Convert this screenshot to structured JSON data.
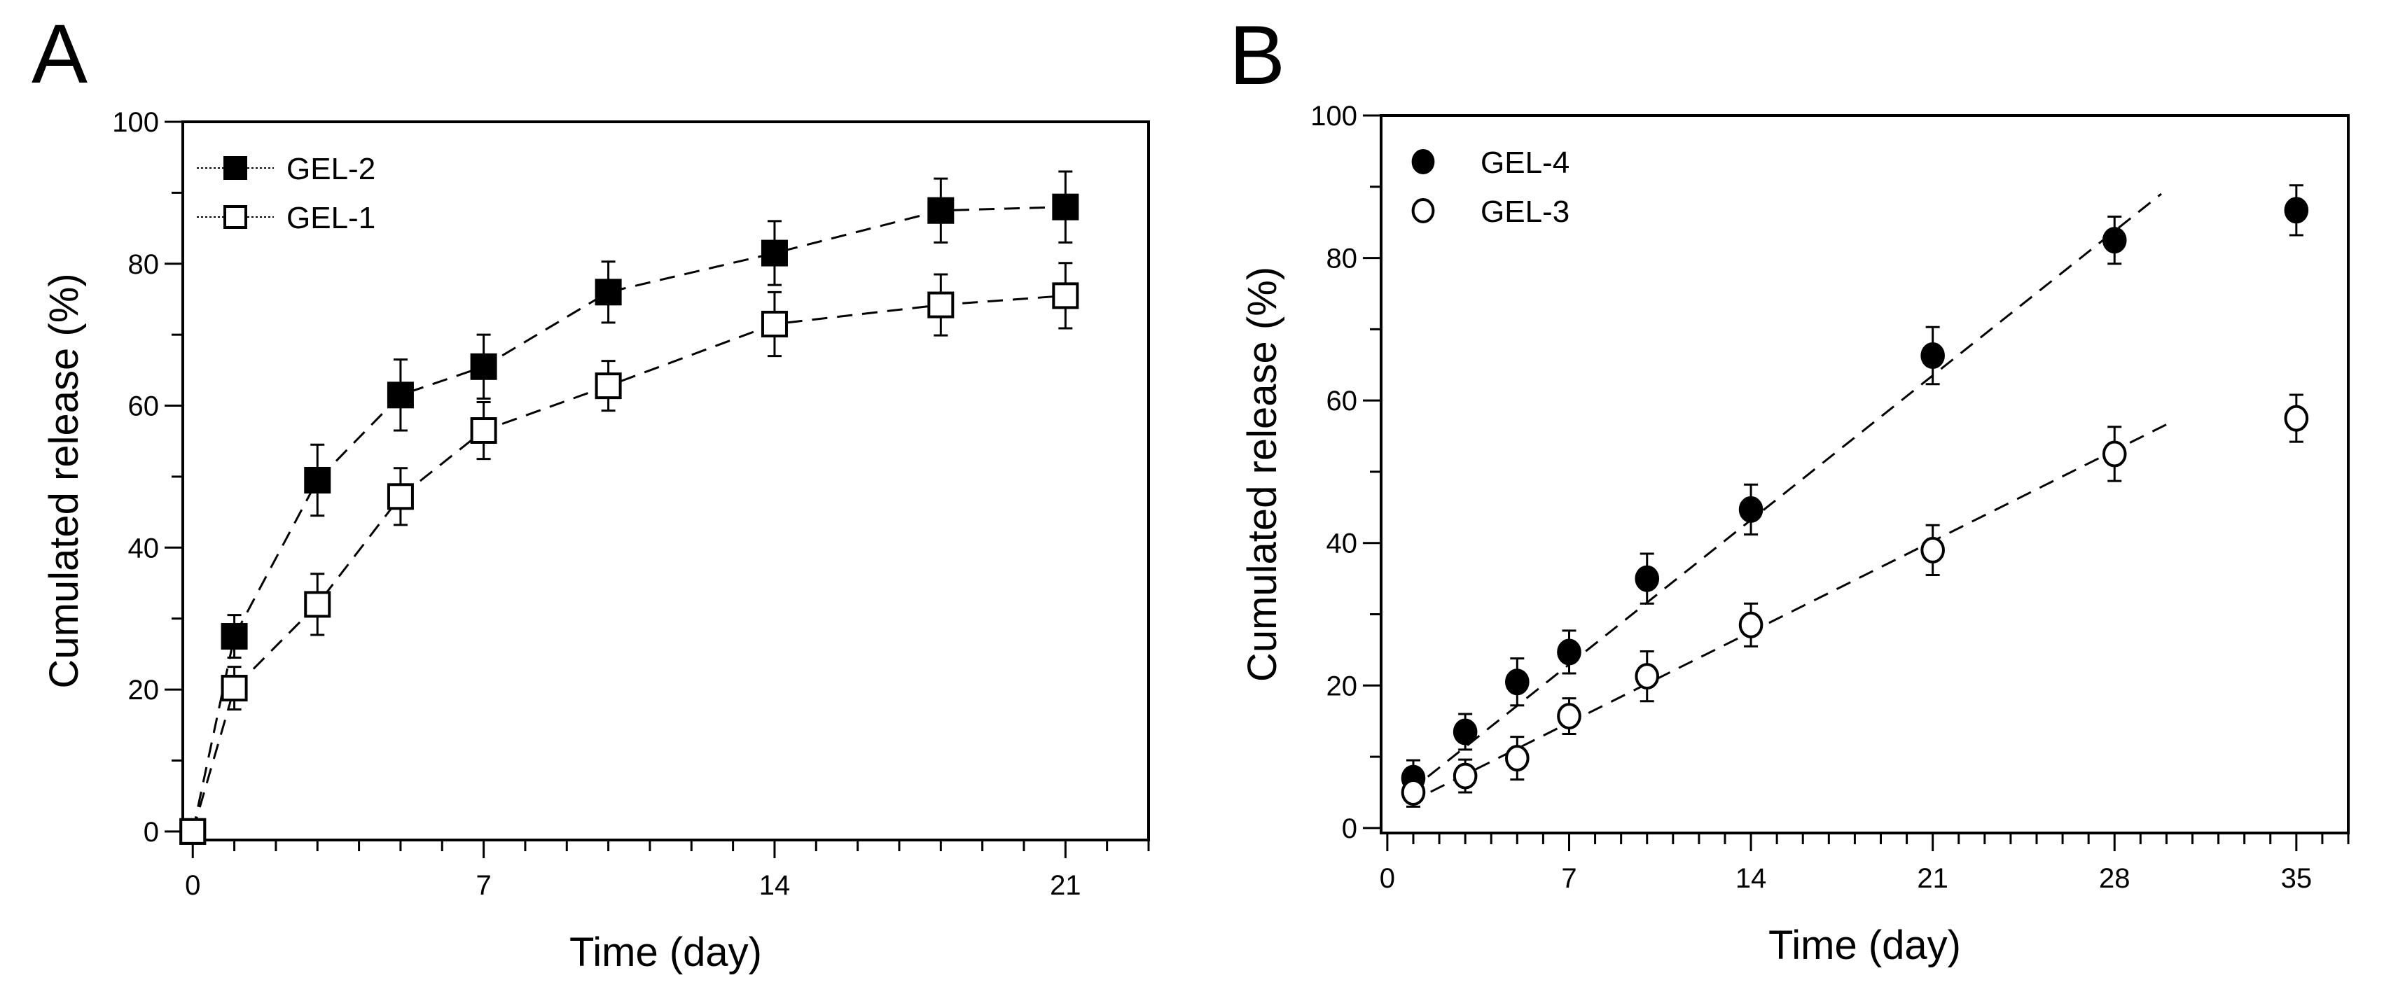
{
  "chart_data": [
    {
      "panel": "A",
      "type": "line",
      "xlabel": "Time (day)",
      "ylabel": "Cumulated release (%)",
      "xlim": [
        -0.24,
        23
      ],
      "ylim": [
        -1.2,
        100
      ],
      "xticks": [
        0,
        7,
        14,
        21
      ],
      "yticks": [
        0,
        20,
        40,
        60,
        80,
        100
      ],
      "legend": "top-left",
      "series": [
        {
          "name": "GEL-2",
          "marker": "filled-square",
          "x": [
            0,
            1,
            3,
            5,
            7,
            10,
            14,
            18,
            21
          ],
          "y": [
            0,
            27.5,
            49.5,
            61.5,
            65.5,
            76,
            81.5,
            87.5,
            88
          ],
          "err": [
            0,
            3,
            5,
            5,
            4.5,
            4.3,
            4.5,
            4.5,
            5
          ]
        },
        {
          "name": "GEL-1",
          "marker": "open-square",
          "x": [
            0,
            1,
            3,
            5,
            7,
            10,
            14,
            18,
            21
          ],
          "y": [
            0,
            20.2,
            32,
            47.2,
            56.5,
            62.8,
            71.5,
            74.2,
            75.5
          ],
          "err": [
            0,
            3,
            4.3,
            4,
            4,
            3.5,
            4.5,
            4.3,
            4.6
          ]
        }
      ]
    },
    {
      "panel": "B",
      "type": "scatter",
      "xlabel": "Time (day)",
      "ylabel": "Cumulated release (%)",
      "xlim": [
        -0.24,
        37
      ],
      "ylim": [
        -0.7,
        100
      ],
      "xticks": [
        0,
        7,
        14,
        21,
        28,
        35
      ],
      "yticks": [
        0,
        20,
        40,
        60,
        80,
        100
      ],
      "legend": "top-left",
      "series": [
        {
          "name": "GEL-4",
          "marker": "filled-circle",
          "x": [
            1,
            3,
            5,
            7,
            10,
            14,
            21,
            28,
            35
          ],
          "y": [
            7,
            13.5,
            20.5,
            24.7,
            35,
            44.7,
            66.3,
            82.5,
            86.7
          ],
          "err": [
            2.5,
            2.5,
            3.3,
            3,
            3.5,
            3.5,
            4,
            3.3,
            3.5
          ],
          "fit": [
            [
              0.8,
              5
            ],
            [
              29.8,
              89
            ]
          ]
        },
        {
          "name": "GEL-3",
          "marker": "open-circle",
          "x": [
            1,
            3,
            5,
            7,
            10,
            14,
            21,
            28,
            35
          ],
          "y": [
            5,
            7.3,
            9.8,
            15.7,
            21.3,
            28.5,
            39,
            52.5,
            57.5
          ],
          "err": [
            2,
            2.3,
            3,
            2.5,
            3.5,
            3,
            3.5,
            3.8,
            3.3
          ],
          "fit": [
            [
              0.8,
              3.5
            ],
            [
              30.2,
              57
            ]
          ]
        }
      ]
    }
  ]
}
